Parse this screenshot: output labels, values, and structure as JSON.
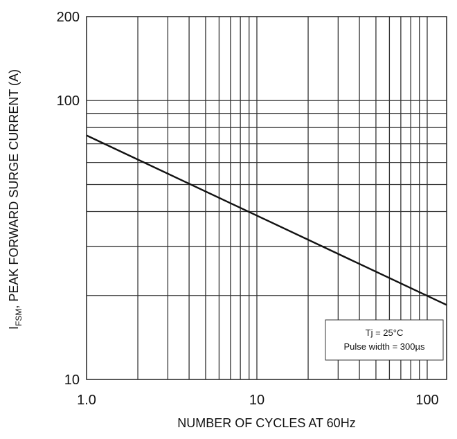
{
  "chart_data": {
    "type": "line",
    "xscale": "log",
    "yscale": "log",
    "xlim": [
      1,
      130
    ],
    "ylim": [
      10,
      200
    ],
    "x_ticks": [
      {
        "value": 1,
        "label": "1.0"
      },
      {
        "value": 10,
        "label": "10"
      },
      {
        "value": 100,
        "label": "100"
      }
    ],
    "y_ticks": [
      {
        "value": 10,
        "label": "10"
      },
      {
        "value": 100,
        "label": "100"
      },
      {
        "value": 200,
        "label": "200"
      }
    ],
    "xlabel": "NUMBER OF CYCLES AT 60Hz",
    "ylabel": {
      "prefix": "I",
      "subscript": "FSM",
      "suffix": ", PEAK FORWARD SURGE CURRENT (A)"
    },
    "grid": true,
    "series": [
      {
        "x": [
          1,
          130
        ],
        "y": [
          75,
          18.5
        ],
        "color": "#111111"
      }
    ],
    "annotation": {
      "lines": [
        "Tj = 25°C",
        "Pulse width = 300µs"
      ],
      "position": "bottom-right"
    }
  }
}
